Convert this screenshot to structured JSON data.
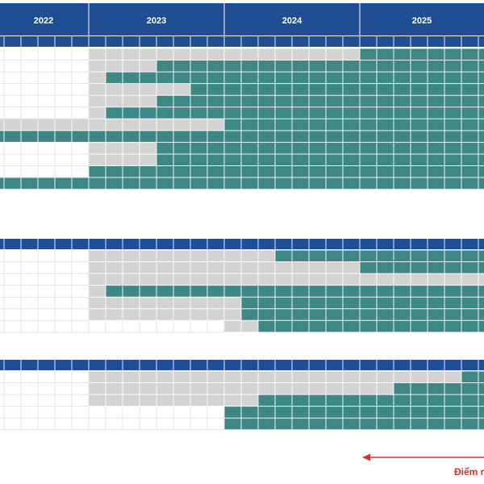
{
  "colors": {
    "header": "#1f4e94",
    "header_line": "#ffffff",
    "planned": "#d3d3d3",
    "active": "#3d8785",
    "grid": "#e4e4e4",
    "arrow": "#d9302c"
  },
  "chart_data": {
    "type": "table",
    "years": [
      "2022",
      "2023",
      "2024",
      "2025"
    ],
    "columns_per_year": 8,
    "visible_columns": 29,
    "value_legend": {
      "0": "empty",
      "1": "grey",
      "2": "teal"
    },
    "groups": [
      {
        "rows": [
          {
            "segments": [
              [
                0,
                5,
                0
              ],
              [
                5,
                21,
                1
              ],
              [
                21,
                29,
                2
              ]
            ]
          },
          {
            "segments": [
              [
                0,
                5,
                0
              ],
              [
                5,
                9,
                1
              ],
              [
                9,
                29,
                2
              ]
            ]
          },
          {
            "segments": [
              [
                0,
                5,
                0
              ],
              [
                5,
                6,
                1
              ],
              [
                6,
                29,
                2
              ]
            ]
          },
          {
            "segments": [
              [
                0,
                5,
                0
              ],
              [
                5,
                11,
                1
              ],
              [
                11,
                29,
                2
              ]
            ]
          },
          {
            "segments": [
              [
                0,
                5,
                0
              ],
              [
                5,
                9,
                1
              ],
              [
                9,
                29,
                2
              ]
            ]
          },
          {
            "segments": [
              [
                0,
                5,
                0
              ],
              [
                5,
                6,
                1
              ],
              [
                6,
                29,
                2
              ]
            ]
          },
          {
            "segments": [
              [
                0,
                13,
                1
              ],
              [
                13,
                29,
                2
              ]
            ]
          },
          {
            "segments": [
              [
                0,
                29,
                2
              ]
            ]
          },
          {
            "segments": [
              [
                0,
                5,
                0
              ],
              [
                5,
                9,
                1
              ],
              [
                9,
                29,
                2
              ]
            ]
          },
          {
            "segments": [
              [
                0,
                5,
                0
              ],
              [
                5,
                9,
                1
              ],
              [
                9,
                29,
                2
              ]
            ]
          },
          {
            "segments": [
              [
                0,
                5,
                0
              ],
              [
                5,
                29,
                2
              ]
            ]
          },
          {
            "segments": [
              [
                0,
                29,
                2
              ]
            ]
          }
        ]
      },
      {
        "rows": [
          {
            "segments": [
              [
                0,
                5,
                0
              ],
              [
                5,
                16,
                1
              ],
              [
                16,
                29,
                2
              ]
            ]
          },
          {
            "segments": [
              [
                0,
                5,
                0
              ],
              [
                5,
                21,
                1
              ],
              [
                21,
                29,
                2
              ]
            ]
          },
          {
            "segments": [
              [
                0,
                5,
                0
              ],
              [
                5,
                29,
                1
              ]
            ]
          },
          {
            "segments": [
              [
                0,
                5,
                0
              ],
              [
                5,
                6,
                1
              ],
              [
                6,
                29,
                2
              ]
            ]
          },
          {
            "segments": [
              [
                0,
                5,
                0
              ],
              [
                5,
                14,
                1
              ],
              [
                14,
                29,
                2
              ]
            ]
          },
          {
            "segments": [
              [
                0,
                5,
                0
              ],
              [
                5,
                14,
                1
              ],
              [
                14,
                29,
                2
              ]
            ]
          },
          {
            "segments": [
              [
                0,
                13,
                0
              ],
              [
                13,
                15,
                1
              ],
              [
                15,
                29,
                2
              ]
            ]
          }
        ]
      },
      {
        "rows": [
          {
            "segments": [
              [
                0,
                5,
                0
              ],
              [
                5,
                27,
                1
              ],
              [
                27,
                29,
                2
              ]
            ]
          },
          {
            "segments": [
              [
                0,
                5,
                0
              ],
              [
                5,
                23,
                1
              ],
              [
                23,
                29,
                2
              ]
            ]
          },
          {
            "segments": [
              [
                0,
                5,
                0
              ],
              [
                5,
                15,
                1
              ],
              [
                15,
                29,
                2
              ]
            ]
          },
          {
            "segments": [
              [
                0,
                13,
                0
              ],
              [
                13,
                29,
                2
              ]
            ]
          },
          {
            "segments": [
              [
                0,
                13,
                0
              ],
              [
                13,
                29,
                2
              ]
            ]
          }
        ]
      }
    ]
  },
  "annotation": {
    "label": "Điểm r"
  }
}
